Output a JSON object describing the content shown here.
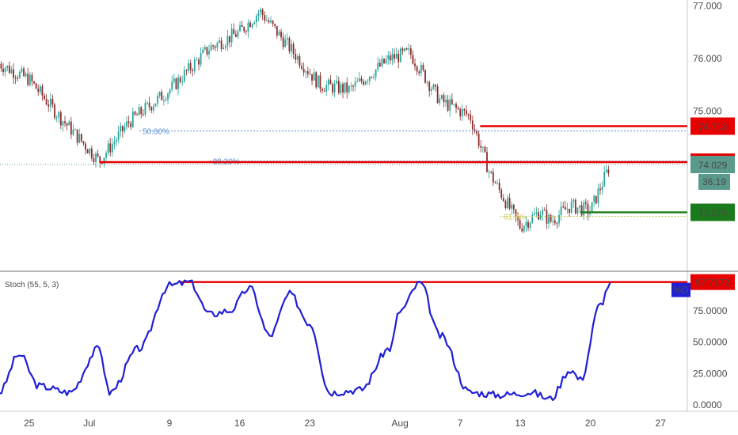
{
  "chart_data": [
    {
      "type": "candlestick",
      "panel": "price",
      "ylim": [
        72.0,
        77.05
      ],
      "y_ticks": [
        "77.000",
        "76.000",
        "75.000"
      ],
      "x_ticks": [
        "25",
        "Jul",
        "9",
        "16",
        "23",
        "Aug",
        "7",
        "13",
        "20",
        "27"
      ],
      "colors": {
        "up": "#26a69a",
        "down": "#8b2b2b",
        "level_red": "#e60000",
        "level_green": "#1b7a1b",
        "fib": "#5b8fd6"
      },
      "fib_levels": [
        {
          "label": "50.00%",
          "price": 74.62
        },
        {
          "label": "38.20%",
          "price": 74.05
        },
        {
          "label": "61.8%",
          "price": 73.0
        }
      ],
      "horizontal_levels": [
        {
          "label": "74.713",
          "price": 74.713,
          "color": "#e60000"
        },
        {
          "label": "74.029",
          "price": 74.029,
          "color": "#e60000"
        },
        {
          "label": "73.075",
          "price": 73.075,
          "color": "#1b7a1b"
        }
      ],
      "countdown": "36:19",
      "close_series": [
        {
          "x": "Jun 22",
          "close": 75.9
        },
        {
          "x": "Jun 25",
          "close": 75.6
        },
        {
          "x": "Jun 28",
          "close": 74.9
        },
        {
          "x": "Jul 2",
          "close": 74.05
        },
        {
          "x": "Jul 5",
          "close": 74.8
        },
        {
          "x": "Jul 9",
          "close": 75.4
        },
        {
          "x": "Jul 13",
          "close": 76.2
        },
        {
          "x": "Jul 16",
          "close": 76.5
        },
        {
          "x": "Jul 18",
          "close": 76.9
        },
        {
          "x": "Jul 21",
          "close": 76.2
        },
        {
          "x": "Jul 24",
          "close": 75.5
        },
        {
          "x": "Jul 27",
          "close": 75.4
        },
        {
          "x": "Jul 31",
          "close": 76.0
        },
        {
          "x": "Aug 2",
          "close": 76.1
        },
        {
          "x": "Aug 5",
          "close": 75.2
        },
        {
          "x": "Aug 8",
          "close": 74.9
        },
        {
          "x": "Aug 10",
          "close": 73.8
        },
        {
          "x": "Aug 13",
          "close": 72.8
        },
        {
          "x": "Aug 15",
          "close": 73.1
        },
        {
          "x": "Aug 16",
          "close": 72.9
        },
        {
          "x": "Aug 18",
          "close": 73.2
        },
        {
          "x": "Aug 20",
          "close": 73.1
        },
        {
          "x": "Aug 22",
          "close": 74.0
        }
      ]
    },
    {
      "type": "line",
      "panel": "indicator",
      "label": "Stoch (55, 5, 3)",
      "series_label": "%D",
      "ylim": [
        0,
        100
      ],
      "y_ticks": [
        "75.0000",
        "50.0000",
        "25.0000",
        "0.0000"
      ],
      "level": {
        "label": "97.7172",
        "value": 97.7172,
        "color": "#e60000"
      },
      "line_color": "#1f1fd6",
      "points": [
        {
          "x": "Jun 22",
          "y": 10
        },
        {
          "x": "Jun 24",
          "y": 40
        },
        {
          "x": "Jun 26",
          "y": 15
        },
        {
          "x": "Jun 29",
          "y": 10
        },
        {
          "x": "Jul 2",
          "y": 45
        },
        {
          "x": "Jul 3",
          "y": 10
        },
        {
          "x": "Jul 6",
          "y": 45
        },
        {
          "x": "Jul 9",
          "y": 95
        },
        {
          "x": "Jul 11",
          "y": 97.7
        },
        {
          "x": "Jul 13",
          "y": 72
        },
        {
          "x": "Jul 15",
          "y": 75
        },
        {
          "x": "Jul 17",
          "y": 93
        },
        {
          "x": "Jul 19",
          "y": 55
        },
        {
          "x": "Jul 21",
          "y": 88
        },
        {
          "x": "Jul 23",
          "y": 65
        },
        {
          "x": "Jul 25",
          "y": 10
        },
        {
          "x": "Jul 28",
          "y": 12
        },
        {
          "x": "Jul 31",
          "y": 45
        },
        {
          "x": "Aug 1",
          "y": 75
        },
        {
          "x": "Aug 3",
          "y": 97
        },
        {
          "x": "Aug 5",
          "y": 55
        },
        {
          "x": "Aug 8",
          "y": 10
        },
        {
          "x": "Aug 11",
          "y": 8
        },
        {
          "x": "Aug 14",
          "y": 10
        },
        {
          "x": "Aug 16",
          "y": 5
        },
        {
          "x": "Aug 18",
          "y": 28
        },
        {
          "x": "Aug 19",
          "y": 20
        },
        {
          "x": "Aug 21",
          "y": 80
        },
        {
          "x": "Aug 22",
          "y": 97.7
        }
      ]
    }
  ]
}
